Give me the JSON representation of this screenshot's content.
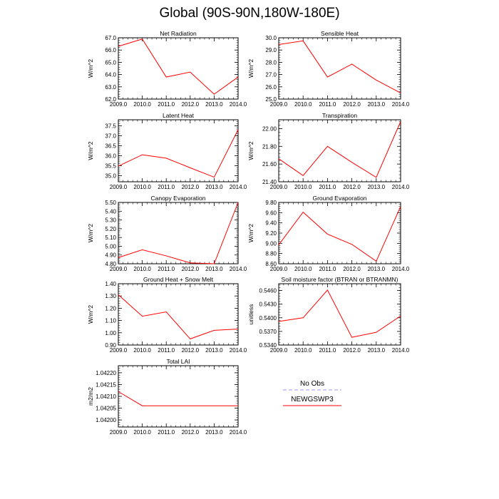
{
  "title": "Global (90S-90N,180W-180E)",
  "legend": {
    "placement": "bottom-right",
    "entries": [
      {
        "label": "No Obs",
        "color": "#9999ee",
        "dash": true
      },
      {
        "label": "NEWGSWP3",
        "color": "#ff0000",
        "dash": false
      }
    ]
  },
  "chart_data": [
    {
      "type": "line",
      "title": "Net Radiation",
      "ylabel": "W/m^2",
      "x": [
        2009,
        2010,
        2011,
        2012,
        2013,
        2014
      ],
      "xlim": [
        2009,
        2014
      ],
      "xticks": [
        2009,
        2010,
        2011,
        2012,
        2013,
        2014
      ],
      "xdec": 1,
      "ylim": [
        62,
        67
      ],
      "yticks": [
        62,
        63,
        64,
        65,
        66,
        67
      ],
      "ydec": 1,
      "series": [
        {
          "values": [
            66.3,
            66.9,
            63.8,
            64.2,
            62.4,
            63.8
          ],
          "color": "#ff0000"
        }
      ]
    },
    {
      "type": "line",
      "title": "Sensible Heat",
      "ylabel": "W/m^2",
      "x": [
        2009,
        2010,
        2011,
        2012,
        2013,
        2014
      ],
      "xlim": [
        2009,
        2014
      ],
      "xticks": [
        2009,
        2010,
        2011,
        2012,
        2013,
        2014
      ],
      "xdec": 1,
      "ylim": [
        25,
        30
      ],
      "yticks": [
        25,
        26,
        27,
        28,
        29,
        30
      ],
      "ydec": 1,
      "series": [
        {
          "values": [
            29.45,
            29.75,
            26.8,
            27.85,
            26.55,
            25.5
          ],
          "color": "#ff0000"
        }
      ]
    },
    {
      "type": "line",
      "title": "Latent Heat",
      "ylabel": "W/m^2",
      "x": [
        2009,
        2010,
        2011,
        2012,
        2013,
        2014
      ],
      "xlim": [
        2009,
        2014
      ],
      "xticks": [
        2009,
        2010,
        2011,
        2012,
        2013,
        2014
      ],
      "xdec": 1,
      "ylim": [
        34.7,
        37.8
      ],
      "yticks": [
        35,
        35.5,
        36,
        36.5,
        37,
        37.5
      ],
      "ydec": 1,
      "series": [
        {
          "values": [
            35.48,
            36.05,
            35.88,
            35.4,
            34.93,
            37.3
          ],
          "color": "#ff0000"
        }
      ]
    },
    {
      "type": "line",
      "title": "Transpiration",
      "ylabel": "W/m^2",
      "x": [
        2009,
        2010,
        2011,
        2012,
        2013,
        2014
      ],
      "xlim": [
        2009,
        2014
      ],
      "xticks": [
        2009,
        2010,
        2011,
        2012,
        2013,
        2014
      ],
      "xdec": 1,
      "ylim": [
        21.4,
        22.1
      ],
      "yticks": [
        21.4,
        21.6,
        21.8,
        22.0
      ],
      "ydec": 2,
      "series": [
        {
          "values": [
            21.66,
            21.47,
            21.8,
            21.62,
            21.45,
            22.08
          ],
          "color": "#ff0000"
        }
      ]
    },
    {
      "type": "line",
      "title": "Canopy Evaporation",
      "ylabel": "W/m^2",
      "x": [
        2009,
        2010,
        2011,
        2012,
        2013,
        2014
      ],
      "xlim": [
        2009,
        2014
      ],
      "xticks": [
        2009,
        2010,
        2011,
        2012,
        2013,
        2014
      ],
      "xdec": 1,
      "ylim": [
        4.8,
        5.5
      ],
      "yticks": [
        4.8,
        4.9,
        5.0,
        5.1,
        5.2,
        5.3,
        5.4,
        5.5
      ],
      "ydec": 2,
      "series": [
        {
          "values": [
            4.87,
            4.96,
            4.89,
            4.81,
            4.8,
            5.5
          ],
          "color": "#ff0000"
        }
      ]
    },
    {
      "type": "line",
      "title": "Ground Evaporation",
      "ylabel": "W/m^2",
      "x": [
        2009,
        2010,
        2011,
        2012,
        2013,
        2014
      ],
      "xlim": [
        2009,
        2014
      ],
      "xticks": [
        2009,
        2010,
        2011,
        2012,
        2013,
        2014
      ],
      "xdec": 1,
      "ylim": [
        8.6,
        9.8
      ],
      "yticks": [
        8.6,
        8.8,
        9.0,
        9.2,
        9.4,
        9.6,
        9.8
      ],
      "ydec": 2,
      "series": [
        {
          "values": [
            8.97,
            9.61,
            9.18,
            8.98,
            8.65,
            9.72
          ],
          "color": "#ff0000"
        }
      ]
    },
    {
      "type": "line",
      "title": "Ground Heat + Snow Melt",
      "ylabel": "W/m^2",
      "x": [
        2009,
        2010,
        2011,
        2012,
        2013,
        2014
      ],
      "xlim": [
        2009,
        2014
      ],
      "xticks": [
        2009,
        2010,
        2011,
        2012,
        2013,
        2014
      ],
      "xdec": 1,
      "ylim": [
        0.9,
        1.4
      ],
      "yticks": [
        0.9,
        1.0,
        1.1,
        1.2,
        1.3,
        1.4
      ],
      "ydec": 2,
      "series": [
        {
          "values": [
            1.31,
            1.135,
            1.17,
            0.95,
            1.02,
            1.03
          ],
          "color": "#ff0000"
        }
      ]
    },
    {
      "type": "line",
      "title": "Soil moisture factor (BTRAN or BTRANMN)",
      "ylabel": "unitless",
      "x": [
        2009,
        2010,
        2011,
        2012,
        2013,
        2014
      ],
      "xlim": [
        2009,
        2014
      ],
      "xticks": [
        2009,
        2010,
        2011,
        2012,
        2013,
        2014
      ],
      "xdec": 1,
      "ylim": [
        0.534,
        0.5475
      ],
      "yticks": [
        0.534,
        0.537,
        0.54,
        0.543,
        0.546
      ],
      "ydec": 4,
      "series": [
        {
          "values": [
            0.5392,
            0.54,
            0.5461,
            0.5357,
            0.5368,
            0.5404
          ],
          "color": "#ff0000"
        }
      ]
    },
    {
      "type": "line",
      "title": "Total LAI",
      "ylabel": "m2/m2",
      "x": [
        2009,
        2010,
        2011,
        2012,
        2013,
        2014
      ],
      "xlim": [
        2009,
        2014
      ],
      "xticks": [
        2009,
        2010,
        2011,
        2012,
        2013,
        2014
      ],
      "xdec": 1,
      "ylim": [
        1.04197,
        1.04223
      ],
      "yticks": [
        1.042,
        1.04205,
        1.0421,
        1.04215,
        1.0422
      ],
      "ydec": 5,
      "series": [
        {
          "values": [
            1.04212,
            1.04206,
            1.04206,
            1.04206,
            1.04206,
            1.04206
          ],
          "color": "#ff0000"
        }
      ]
    }
  ]
}
